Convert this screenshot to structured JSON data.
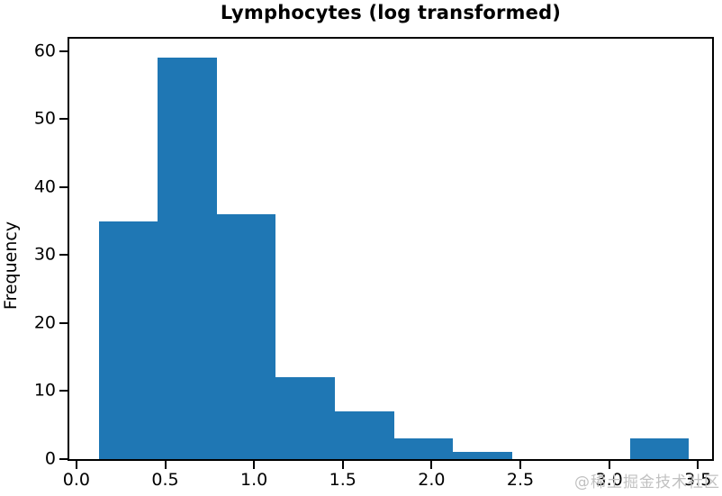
{
  "chart_data": {
    "type": "bar",
    "subtype": "histogram",
    "title": "Lymphocytes (log transformed)",
    "xlabel": "",
    "ylabel": "Frequency",
    "bin_edges": [
      0.126,
      0.458,
      0.791,
      1.123,
      1.456,
      1.788,
      2.121,
      2.453,
      2.786,
      3.118,
      3.45
    ],
    "counts": [
      35,
      59,
      36,
      12,
      7,
      3,
      1,
      0,
      0,
      3
    ],
    "bar_color": "#1f77b4",
    "axis_color": "#000000",
    "xlim": [
      -0.04,
      3.58
    ],
    "ylim": [
      0,
      61.8
    ],
    "xticks": {
      "values": [
        0,
        0.5,
        1,
        1.5,
        2,
        2.5,
        3,
        3.5
      ],
      "labels": [
        "0.0",
        "0.5",
        "1.0",
        "1.5",
        "2.0",
        "2.5",
        "3.0",
        "3.5"
      ]
    },
    "yticks": {
      "values": [
        0,
        10,
        20,
        30,
        40,
        50,
        60
      ],
      "labels": [
        "0",
        "10",
        "20",
        "30",
        "40",
        "50",
        "60"
      ]
    },
    "grid": false,
    "legend": null
  },
  "watermark": {
    "text": "@稀土掘金技术社区",
    "color": "#c1c1c1"
  }
}
